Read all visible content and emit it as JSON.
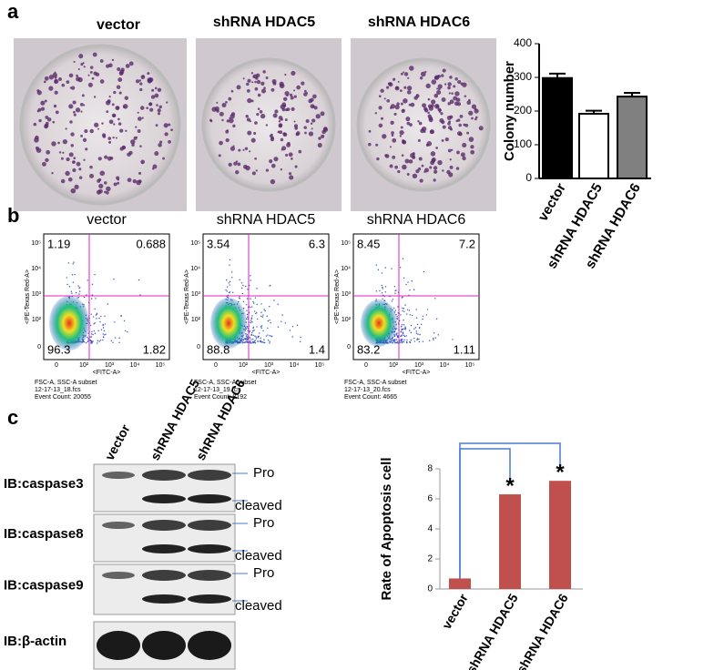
{
  "panels": {
    "a": {
      "letter": "a",
      "plate_labels": [
        "vector",
        "shRNA HDAC5",
        "shRNA HDAC6"
      ]
    },
    "b": {
      "letter": "b",
      "y_axis_label": "<PE-Texas Red-A>",
      "x_axis_label": "<FITC-A>",
      "ticks": [
        "0",
        "10²",
        "10³",
        "10⁴",
        "10⁵"
      ],
      "plots": [
        {
          "title": "vector",
          "quadrants": [
            "1.19",
            "0.688",
            "96.3",
            "1.82"
          ],
          "footer": [
            "FSC-A, SSC-A subset",
            "12-17-13_18.fcs",
            "Event Count: 20055"
          ]
        },
        {
          "title": "shRNA HDAC5",
          "quadrants": [
            "3.54",
            "6.3",
            "88.8",
            "1.4"
          ],
          "footer": [
            "FSC-A, SSC-A subset",
            "12-17-13_19.fcs",
            "Event Count: 8192"
          ]
        },
        {
          "title": "shRNA HDAC6",
          "quadrants": [
            "8.45",
            "7.2",
            "83.2",
            "1.11"
          ],
          "footer": [
            "FSC-A, SSC-A subset",
            "12-17-13_20.fcs",
            "Event Count: 4665"
          ]
        }
      ]
    },
    "c": {
      "letter": "c",
      "lanes": [
        "vector",
        "shRNA HDAC5",
        "shRNA HDAC6"
      ],
      "rows": [
        {
          "label": "IB:caspase3",
          "bands": [
            "Pro",
            "cleaved"
          ]
        },
        {
          "label": "IB:caspase8",
          "bands": [
            "Pro",
            "cleaved"
          ]
        },
        {
          "label": "IB:caspase9",
          "bands": [
            "Pro",
            "cleaved"
          ]
        },
        {
          "label": "IB:β-actin",
          "bands": []
        }
      ]
    }
  },
  "chart_data": [
    {
      "type": "bar",
      "y_label": "Colony number",
      "categories": [
        "vector",
        "shRNA HDAC5",
        "shRNA HDAC6"
      ],
      "values": [
        298,
        192,
        243
      ],
      "errors": [
        13,
        9,
        11
      ],
      "colors": [
        "#000000",
        "#ffffff",
        "#808080"
      ],
      "ylim": [
        0,
        400
      ],
      "yticks": [
        0,
        100,
        200,
        300,
        400
      ],
      "grid": false
    },
    {
      "type": "bar",
      "y_label": "Rate of Apoptosis cell",
      "categories": [
        "vector",
        "shRNA HDAC5",
        "shRNA HDAC6"
      ],
      "values": [
        0.7,
        6.3,
        7.2
      ],
      "colors": [
        "#c0504d",
        "#c0504d",
        "#c0504d"
      ],
      "annotations": [
        null,
        "*",
        "*"
      ],
      "ylim": [
        0,
        8
      ],
      "yticks": [
        0,
        2,
        4,
        6,
        8
      ],
      "grid": false
    }
  ]
}
